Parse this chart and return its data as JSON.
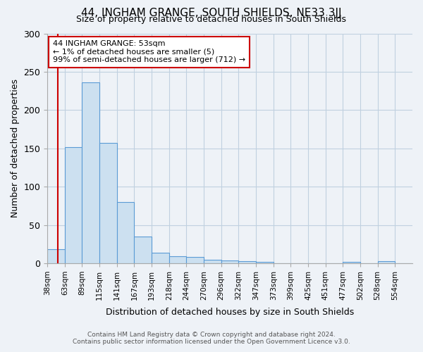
{
  "title": "44, INGHAM GRANGE, SOUTH SHIELDS, NE33 3JJ",
  "subtitle": "Size of property relative to detached houses in South Shields",
  "xlabel": "Distribution of detached houses by size in South Shields",
  "ylabel": "Number of detached properties",
  "footer_line1": "Contains HM Land Registry data © Crown copyright and database right 2024.",
  "footer_line2": "Contains public sector information licensed under the Open Government Licence v3.0.",
  "bar_labels": [
    "38sqm",
    "63sqm",
    "89sqm",
    "115sqm",
    "141sqm",
    "167sqm",
    "193sqm",
    "218sqm",
    "244sqm",
    "270sqm",
    "296sqm",
    "322sqm",
    "347sqm",
    "373sqm",
    "399sqm",
    "425sqm",
    "451sqm",
    "477sqm",
    "502sqm",
    "528sqm",
    "554sqm"
  ],
  "bar_heights": [
    18,
    152,
    236,
    157,
    80,
    35,
    14,
    9,
    8,
    5,
    4,
    3,
    2,
    0,
    0,
    0,
    0,
    2,
    0,
    3,
    0
  ],
  "bar_color": "#cce0f0",
  "bar_edge_color": "#5b9bd5",
  "grid_color": "#c0d0e0",
  "annotation_text": "44 INGHAM GRANGE: 53sqm\n← 1% of detached houses are smaller (5)\n99% of semi-detached houses are larger (712) →",
  "annotation_box_color": "#ffffff",
  "annotation_border_color": "#cc0000",
  "vline_color": "#cc0000",
  "vline_x": 0.6,
  "ylim": [
    0,
    300
  ],
  "yticks": [
    0,
    50,
    100,
    150,
    200,
    250,
    300
  ],
  "background_color": "#eef2f7"
}
